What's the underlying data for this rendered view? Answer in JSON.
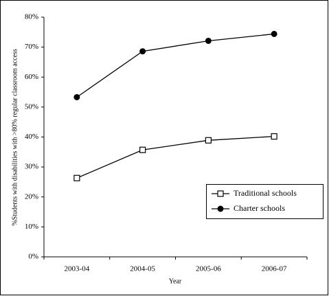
{
  "chart_data": {
    "type": "line",
    "y_label": "%Students with disabilities with >80% regular classroom access",
    "x_label": "Year",
    "categories": [
      "2003-04",
      "2004-05",
      "2005-06",
      "2006-07"
    ],
    "series": [
      {
        "name": "Traditional schools",
        "color": "#000000",
        "marker": "square",
        "values": [
          26.3,
          35.7,
          38.9,
          40.2
        ]
      },
      {
        "name": "Charter schools",
        "color": "#000000",
        "marker": "circle",
        "values": [
          53.3,
          68.6,
          72.1,
          74.4
        ]
      }
    ],
    "ylim": [
      0,
      80
    ],
    "yticks": [
      {
        "value": 0,
        "label": "0%"
      },
      {
        "value": 10,
        "label": "10%"
      },
      {
        "value": 20,
        "label": "20%"
      },
      {
        "value": 30,
        "label": "30%"
      },
      {
        "value": 40,
        "label": "40%"
      },
      {
        "value": 50,
        "label": "50%"
      },
      {
        "value": 60,
        "label": "60%"
      },
      {
        "value": 70,
        "label": "70%"
      },
      {
        "value": 80,
        "label": "80%"
      }
    ],
    "grid": false
  }
}
